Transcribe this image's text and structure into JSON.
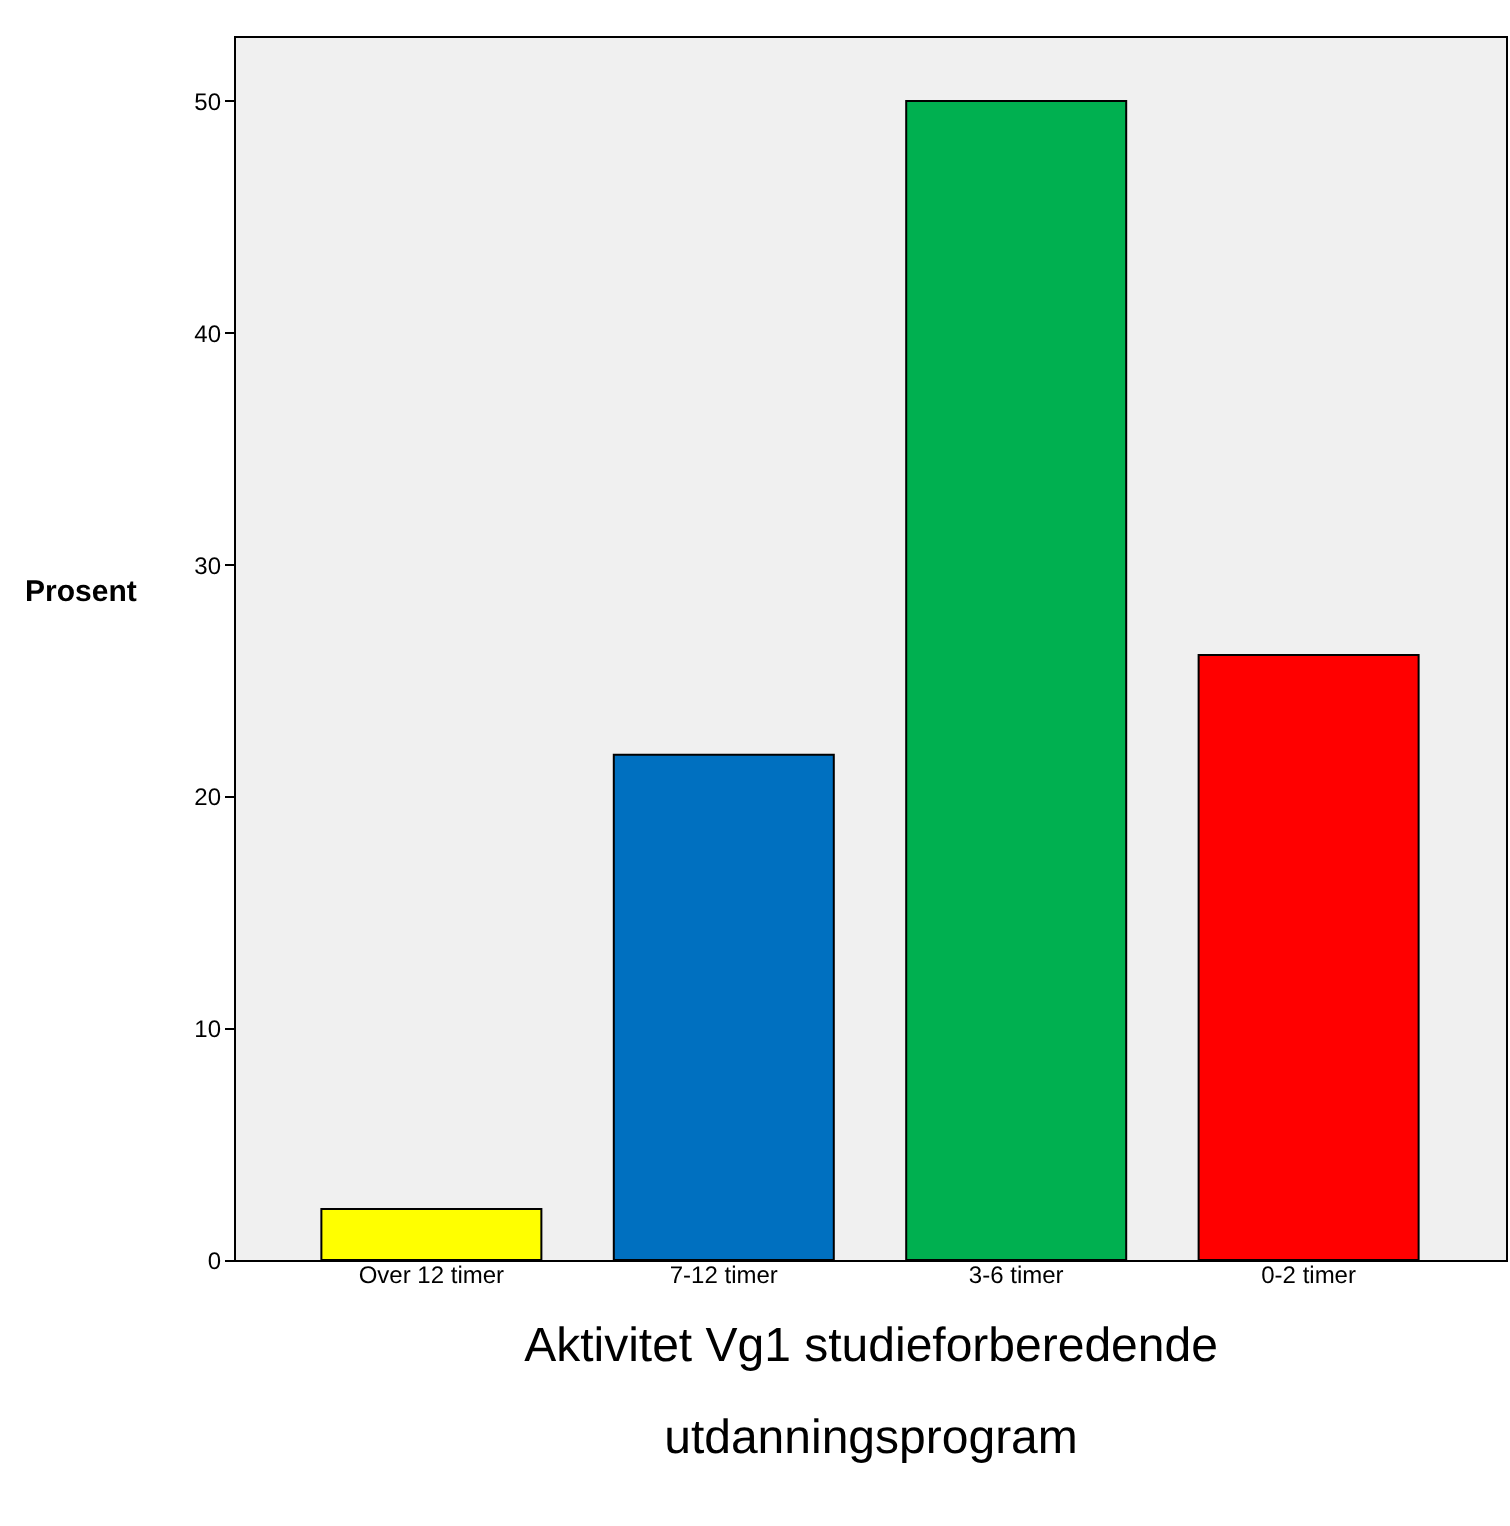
{
  "chart_data": {
    "type": "bar",
    "xlabel": "Aktivitet Vg1 studieforberedende utdanningsprogram",
    "ylabel": "Prosent",
    "categories": [
      "Over 12 timer",
      "7-12 timer",
      "3-6 timer",
      "0-2 timer"
    ],
    "values": [
      2.2,
      21.8,
      50.0,
      26.1
    ],
    "colors": [
      "#ffff00",
      "#0070c0",
      "#00b050",
      "#ff0000"
    ],
    "ylim": [
      0,
      52.8
    ],
    "yticks": [
      0,
      10,
      20,
      30,
      40,
      50
    ],
    "grid": false
  }
}
